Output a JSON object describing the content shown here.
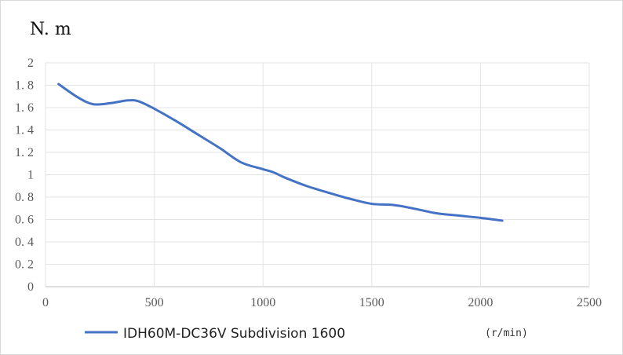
{
  "chart_data": {
    "type": "line",
    "title": "",
    "y_unit_label": "N. m",
    "x_unit_label": "(r/min)",
    "xlim": [
      0,
      2500
    ],
    "ylim": [
      0,
      2
    ],
    "x_ticks": [
      "0",
      "500",
      "1000",
      "1500",
      "2000",
      "2500"
    ],
    "y_ticks": [
      "0",
      "0. 2",
      "0. 4",
      "0. 6",
      "0. 8",
      "1",
      "1. 2",
      "1. 4",
      "1. 6",
      "1. 8",
      "2"
    ],
    "x_tick_values": [
      0,
      500,
      1000,
      1500,
      2000,
      2500
    ],
    "y_tick_values": [
      0,
      0.2,
      0.4,
      0.6,
      0.8,
      1.0,
      1.2,
      1.4,
      1.6,
      1.8,
      2.0
    ],
    "grid": true,
    "legend_position": "bottom-left",
    "series": [
      {
        "name": "IDH60M-DC36V Subdivision 1600",
        "color": "#4472c4",
        "x": [
          60,
          150,
          220,
          300,
          380,
          430,
          500,
          600,
          700,
          800,
          900,
          1000,
          1050,
          1100,
          1200,
          1300,
          1400,
          1500,
          1600,
          1700,
          1800,
          1900,
          2000,
          2100
        ],
        "y": [
          1.81,
          1.69,
          1.63,
          1.64,
          1.665,
          1.655,
          1.59,
          1.48,
          1.36,
          1.24,
          1.11,
          1.05,
          1.02,
          0.975,
          0.9,
          0.84,
          0.785,
          0.74,
          0.73,
          0.695,
          0.655,
          0.635,
          0.615,
          0.59
        ]
      }
    ]
  }
}
